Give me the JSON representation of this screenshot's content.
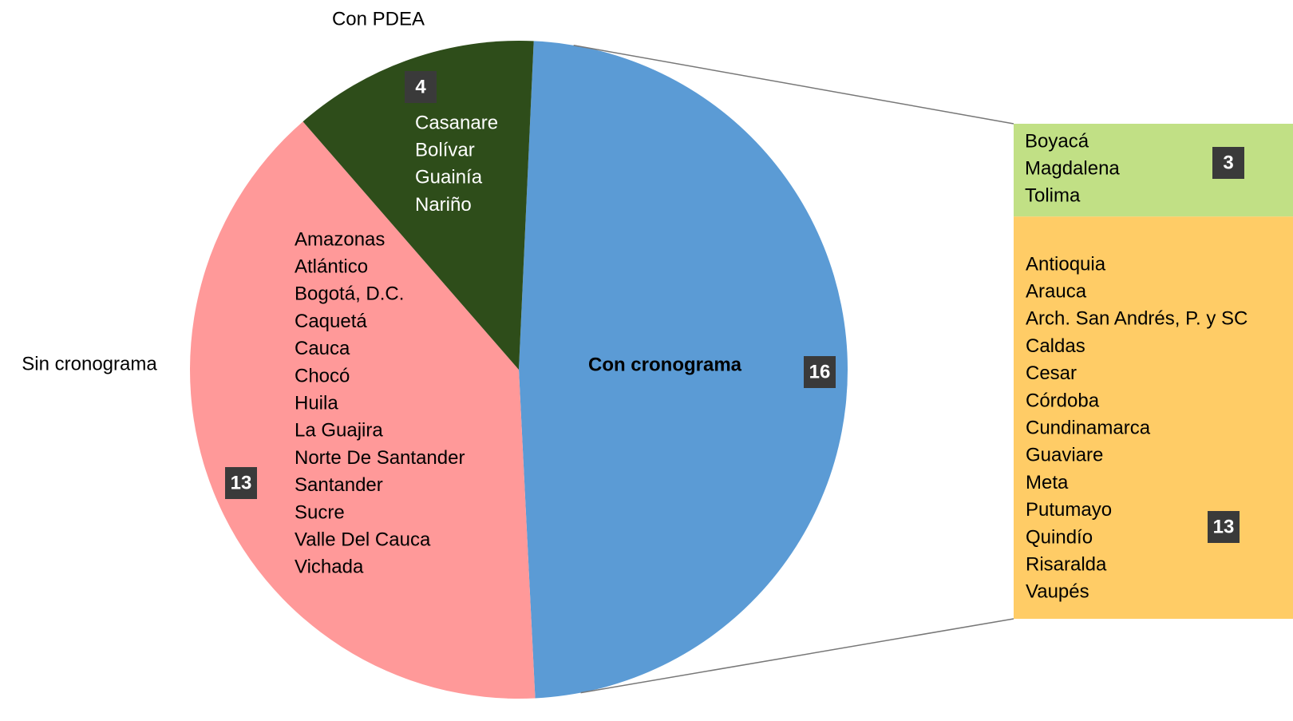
{
  "chart_data": {
    "type": "pie-of-bar",
    "slices": [
      {
        "name": "Con cronograma",
        "value": 16,
        "color": "#5b9bd5",
        "items": []
      },
      {
        "name": "Sin cronograma",
        "value": 13,
        "color": "#ff9999",
        "items": [
          "Amazonas",
          "Atlántico",
          "Bogotá, D.C.",
          "Caquetá",
          "Cauca",
          "Chocó",
          "Huila",
          "La Guajira",
          "Norte De Santander",
          "Santander",
          "Sucre",
          "Valle Del Cauca",
          "Vichada"
        ]
      },
      {
        "name": "Con PDEA",
        "value": 4,
        "color": "#2e4d1a",
        "items": [
          "Casanare",
          "Bolívar",
          "Guainía",
          "Nariño"
        ]
      }
    ],
    "bar": {
      "segments": [
        {
          "value": 3,
          "color": "#c1e085",
          "items": [
            "Boyacá",
            "Magdalena",
            "Tolima"
          ]
        },
        {
          "value": 13,
          "color": "#ffcc66",
          "items": [
            "Antioquia",
            "Arauca",
            "Arch. San Andrés, P. y SC",
            "Caldas",
            "Cesar",
            "Córdoba",
            "Cundinamarca",
            "Guaviare",
            "Meta",
            "Putumayo",
            "Quindío",
            "Risaralda",
            "Vaupés"
          ]
        }
      ]
    }
  }
}
